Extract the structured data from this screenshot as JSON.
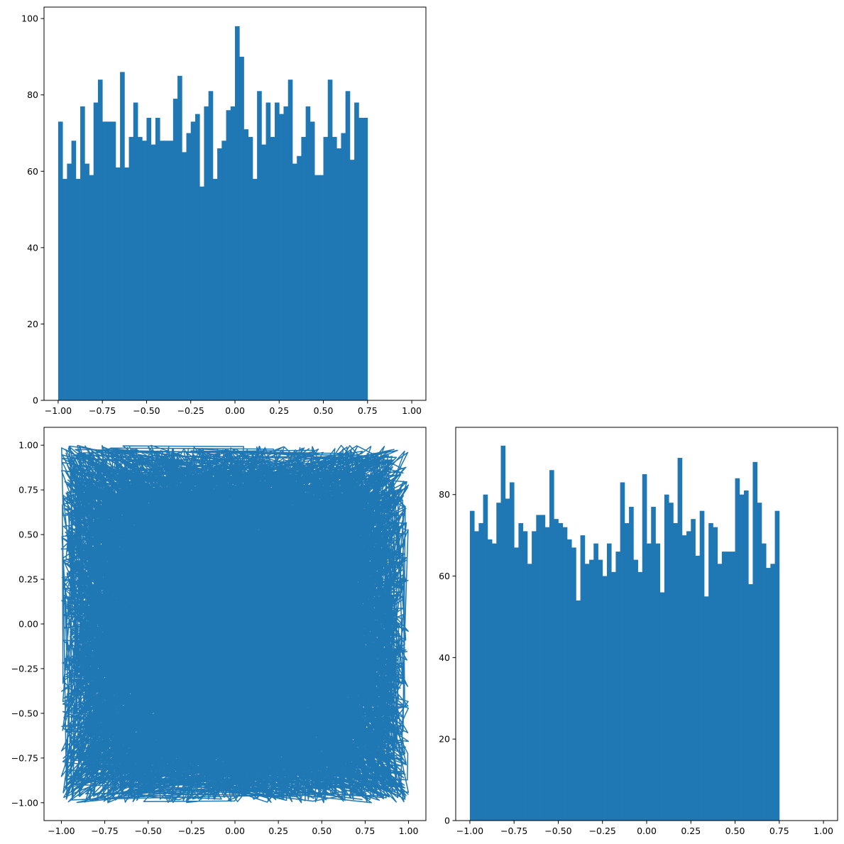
{
  "chart_data": [
    {
      "id": "top-left",
      "type": "bar",
      "title": "",
      "xlabel": "",
      "ylabel": "",
      "xlim": [
        -1.08,
        1.08
      ],
      "ylim": [
        0,
        103
      ],
      "grid": false,
      "bin_start": -1.0,
      "bin_width": 0.025,
      "values": [
        73,
        58,
        62,
        68,
        58,
        77,
        62,
        59,
        78,
        84,
        73,
        73,
        73,
        61,
        86,
        61,
        69,
        78,
        69,
        68,
        74,
        67,
        74,
        68,
        68,
        68,
        79,
        85,
        65,
        70,
        73,
        75,
        56,
        77,
        81,
        58,
        66,
        68,
        76,
        77,
        98,
        90,
        71,
        69,
        58,
        81,
        67,
        78,
        69,
        78,
        75,
        77,
        84,
        62,
        64,
        69,
        77,
        73,
        59,
        59,
        69,
        84,
        69,
        66,
        70,
        81,
        63,
        78,
        74,
        74
      ],
      "x_ticks": [
        -1.0,
        -0.75,
        -0.5,
        -0.25,
        0.0,
        0.25,
        0.5,
        0.75,
        1.0
      ],
      "x_tick_labels": [
        "−1.00",
        "−0.75",
        "−0.50",
        "−0.25",
        "0.00",
        "0.25",
        "0.50",
        "0.75",
        "1.00"
      ],
      "y_ticks": [
        0,
        20,
        40,
        60,
        80,
        100
      ],
      "y_tick_labels": [
        "0",
        "20",
        "40",
        "60",
        "80",
        "100"
      ],
      "color": "#1f77b4"
    },
    {
      "id": "bottom-left",
      "type": "line",
      "title": "",
      "xlabel": "",
      "ylabel": "",
      "xlim": [
        -1.1,
        1.1
      ],
      "ylim": [
        -1.1,
        1.1
      ],
      "grid": false,
      "description_of_data": "random walk-free trajectory of 5000 uniformly distributed (x, y) points in [-1, 1] connected by a line",
      "n_points": 5000,
      "x_ticks": [
        -1.0,
        -0.75,
        -0.5,
        -0.25,
        0.0,
        0.25,
        0.5,
        0.75,
        1.0
      ],
      "x_tick_labels": [
        "−1.00",
        "−0.75",
        "−0.50",
        "−0.25",
        "0.00",
        "0.25",
        "0.50",
        "0.75",
        "1.00"
      ],
      "y_ticks": [
        -1.0,
        -0.75,
        -0.5,
        -0.25,
        0.0,
        0.25,
        0.5,
        0.75,
        1.0
      ],
      "y_tick_labels": [
        "−1.00",
        "−0.75",
        "−0.50",
        "−0.25",
        "0.00",
        "0.25",
        "0.50",
        "0.75",
        "1.00"
      ],
      "color": "#1f77b4"
    },
    {
      "id": "bottom-right",
      "type": "bar",
      "title": "",
      "xlabel": "",
      "ylabel": "",
      "xlim": [
        -1.08,
        1.08
      ],
      "ylim": [
        0,
        96.5
      ],
      "grid": false,
      "bin_start": -1.0,
      "bin_width": 0.025,
      "values": [
        76,
        71,
        73,
        80,
        69,
        68,
        78,
        92,
        79,
        83,
        67,
        73,
        71,
        63,
        71,
        75,
        75,
        72,
        86,
        74,
        73,
        72,
        69,
        67,
        54,
        70,
        63,
        64,
        68,
        64,
        60,
        68,
        61,
        66,
        83,
        73,
        77,
        64,
        61,
        85,
        68,
        77,
        68,
        56,
        80,
        78,
        73,
        89,
        70,
        71,
        74,
        65,
        76,
        55,
        73,
        72,
        63,
        66,
        66,
        66,
        84,
        80,
        81,
        58,
        88,
        78,
        68,
        62,
        63,
        76
      ],
      "x_ticks": [
        -1.0,
        -0.75,
        -0.5,
        -0.25,
        0.0,
        0.25,
        0.5,
        0.75,
        1.0
      ],
      "x_tick_labels": [
        "−1.00",
        "−0.75",
        "−0.50",
        "−0.25",
        "0.00",
        "0.25",
        "0.50",
        "0.75",
        "1.00"
      ],
      "y_ticks": [
        0,
        20,
        40,
        60,
        80
      ],
      "y_tick_labels": [
        "0",
        "20",
        "40",
        "60",
        "80"
      ],
      "color": "#1f77b4"
    }
  ]
}
